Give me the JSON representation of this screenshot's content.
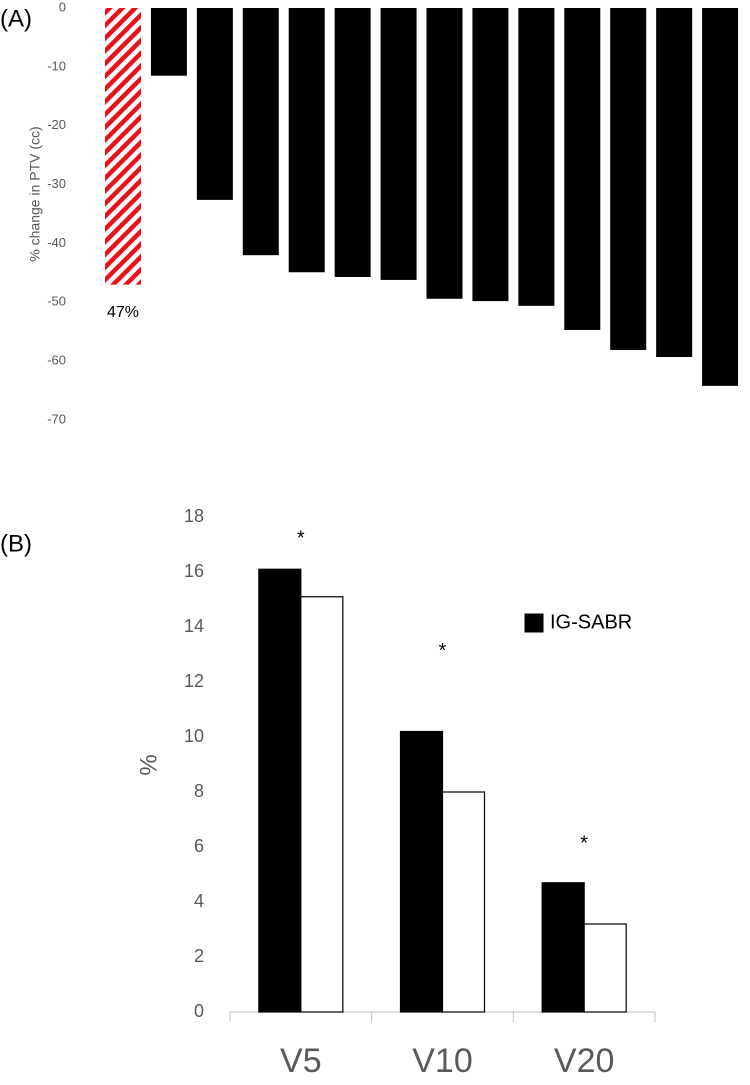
{
  "chart_data": [
    {
      "type": "bar",
      "panel_label": "(A)",
      "ylabel": "% change in PTV (cc)",
      "categories": [
        null,
        null,
        null,
        null,
        null,
        null,
        null,
        null,
        null,
        null,
        null,
        null,
        null,
        null
      ],
      "values": [
        -47,
        -11.5,
        -32.6,
        -42,
        -44.9,
        -45.7,
        -46.2,
        -49.4,
        -49.8,
        -50.6,
        -54.7,
        -58.1,
        -59.3,
        -64.2
      ],
      "colors": [
        "#e8121c",
        "#000000",
        "#000000",
        "#000000",
        "#000000",
        "#000000",
        "#000000",
        "#000000",
        "#000000",
        "#000000",
        "#000000",
        "#000000",
        "#000000",
        "#000000"
      ],
      "fill_style": [
        "hatch",
        "solid",
        "solid",
        "solid",
        "solid",
        "solid",
        "solid",
        "solid",
        "solid",
        "solid",
        "solid",
        "solid",
        "solid",
        "solid"
      ],
      "annotations": [
        {
          "text": "47%",
          "bar": 0
        }
      ],
      "ylim": [
        0,
        -70
      ],
      "yticks": [
        0,
        -10,
        -20,
        -30,
        -40,
        -50,
        -60,
        -70
      ],
      "grid": false
    },
    {
      "type": "grouped_bar",
      "panel_label": "(B)",
      "ylabel": "%",
      "categories": [
        "V5",
        "V10",
        "V20"
      ],
      "series": [
        {
          "name": "IG-SABR",
          "color": "#000000",
          "values": [
            16.1,
            10.2,
            4.7
          ]
        },
        {
          "name": null,
          "color": "#ffffff",
          "values": [
            15.1,
            8.0,
            3.2
          ]
        }
      ],
      "annotations": [
        {
          "text": "*",
          "category": 0,
          "value": 17.2
        },
        {
          "text": "*",
          "category": 1,
          "value": 13.1
        },
        {
          "text": "*",
          "category": 2,
          "value": 6.1
        }
      ],
      "ylim": [
        0,
        18
      ],
      "yticks": [
        0,
        2,
        4,
        6,
        8,
        10,
        12,
        14,
        16,
        18
      ],
      "grid": false,
      "legend": "upper right"
    }
  ]
}
